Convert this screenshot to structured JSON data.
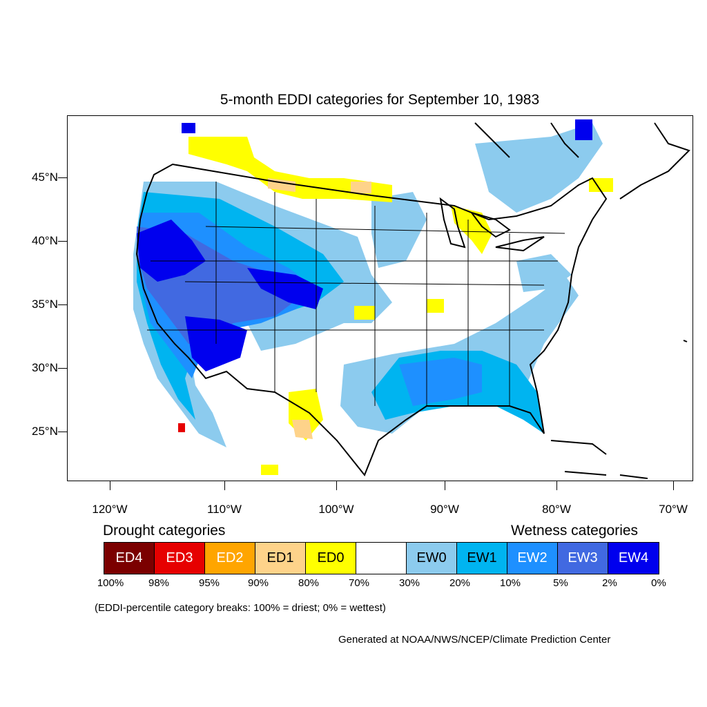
{
  "title": "5-month EDDI categories for September 10, 1983",
  "lat_labels": [
    "45°N",
    "40°N",
    "35°N",
    "30°N",
    "25°N"
  ],
  "lon_labels": [
    "120°W",
    "110°W",
    "100°W",
    "90°W",
    "80°W",
    "70°W"
  ],
  "legend": {
    "drought_heading": "Drought categories",
    "wetness_heading": "Wetness categories",
    "categories": [
      {
        "label": "ED4",
        "color": "#7b0000",
        "text_color": "#ffffff"
      },
      {
        "label": "ED3",
        "color": "#e60000",
        "text_color": "#ffffff"
      },
      {
        "label": "ED2",
        "color": "#ffa500",
        "text_color": "#ffffff"
      },
      {
        "label": "ED1",
        "color": "#fed38a",
        "text_color": "#000000"
      },
      {
        "label": "ED0",
        "color": "#ffff00",
        "text_color": "#000000"
      },
      {
        "label": "",
        "color": "#ffffff",
        "text_color": "#000000"
      },
      {
        "label": "EW0",
        "color": "#8ccbee",
        "text_color": "#000000"
      },
      {
        "label": "EW1",
        "color": "#00b4f0",
        "text_color": "#000000"
      },
      {
        "label": "EW2",
        "color": "#1e90ff",
        "text_color": "#ffffff"
      },
      {
        "label": "EW3",
        "color": "#4169e1",
        "text_color": "#ffffff"
      },
      {
        "label": "EW4",
        "color": "#0000ee",
        "text_color": "#ffffff"
      }
    ],
    "percentiles": [
      "100%",
      "98%",
      "95%",
      "90%",
      "80%",
      "70%",
      "30%",
      "20%",
      "10%",
      "5%",
      "2%",
      "0%"
    ]
  },
  "note": "(EDDI-percentile category breaks: 100% = driest; 0% = wettest)",
  "credit": "Generated at NOAA/NWS/NCEP/Climate Prediction Center"
}
